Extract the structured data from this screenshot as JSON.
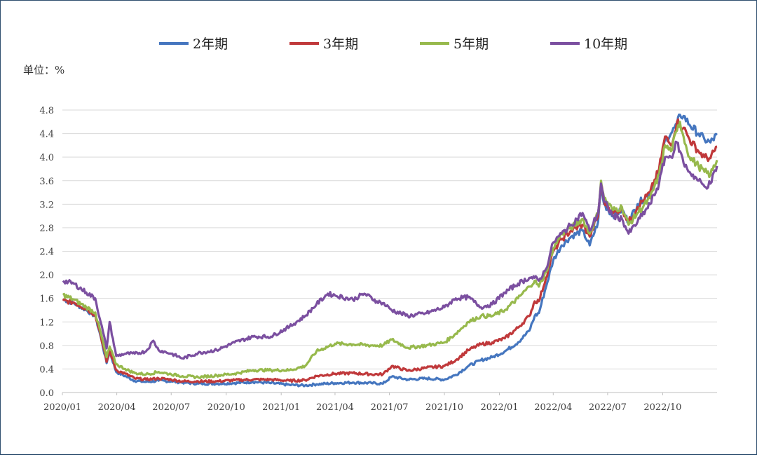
{
  "chart_data": {
    "type": "line",
    "unit_label": "单位：%",
    "legend_position": "top",
    "grid": "horizontal",
    "ylim": [
      0,
      4.8
    ],
    "y_ticks": [
      "0.0",
      "0.4",
      "0.8",
      "1.2",
      "1.6",
      "2.0",
      "2.4",
      "2.8",
      "3.2",
      "3.6",
      "4.0",
      "4.4",
      "4.8"
    ],
    "x_ticks": [
      "2020/01",
      "2020/04",
      "2020/07",
      "2020/10",
      "2021/01",
      "2021/04",
      "2021/07",
      "2021/10",
      "2022/01",
      "2022/04",
      "2022/07",
      "2022/10"
    ],
    "x_range": [
      "2020-01-01",
      "2022-12-31"
    ],
    "series": [
      {
        "name": "2年期",
        "color": "#4576bf",
        "points": [
          [
            "2020-01-02",
            1.58
          ],
          [
            "2020-01-20",
            1.52
          ],
          [
            "2020-02-10",
            1.4
          ],
          [
            "2020-02-25",
            1.3
          ],
          [
            "2020-03-05",
            0.95
          ],
          [
            "2020-03-15",
            0.5
          ],
          [
            "2020-03-20",
            0.7
          ],
          [
            "2020-03-31",
            0.35
          ],
          [
            "2020-04-15",
            0.28
          ],
          [
            "2020-05-01",
            0.2
          ],
          [
            "2020-05-20",
            0.18
          ],
          [
            "2020-06-10",
            0.2
          ],
          [
            "2020-07-01",
            0.19
          ],
          [
            "2020-07-20",
            0.17
          ],
          [
            "2020-08-15",
            0.15
          ],
          [
            "2020-09-15",
            0.15
          ],
          [
            "2020-10-15",
            0.16
          ],
          [
            "2020-11-15",
            0.18
          ],
          [
            "2020-12-15",
            0.16
          ],
          [
            "2021-01-15",
            0.13
          ],
          [
            "2021-02-10",
            0.12
          ],
          [
            "2021-03-01",
            0.14
          ],
          [
            "2021-04-01",
            0.16
          ],
          [
            "2021-05-01",
            0.17
          ],
          [
            "2021-06-01",
            0.16
          ],
          [
            "2021-06-20",
            0.15
          ],
          [
            "2021-07-05",
            0.27
          ],
          [
            "2021-08-01",
            0.22
          ],
          [
            "2021-09-01",
            0.24
          ],
          [
            "2021-10-01",
            0.22
          ],
          [
            "2021-10-20",
            0.3
          ],
          [
            "2021-11-10",
            0.45
          ],
          [
            "2021-12-01",
            0.55
          ],
          [
            "2021-12-20",
            0.6
          ],
          [
            "2022-01-10",
            0.7
          ],
          [
            "2022-02-01",
            0.85
          ],
          [
            "2022-02-20",
            1.05
          ],
          [
            "2022-03-01",
            1.3
          ],
          [
            "2022-03-08",
            1.35
          ],
          [
            "2022-03-20",
            1.8
          ],
          [
            "2022-04-01",
            2.25
          ],
          [
            "2022-04-15",
            2.5
          ],
          [
            "2022-05-01",
            2.65
          ],
          [
            "2022-05-20",
            2.75
          ],
          [
            "2022-06-01",
            2.5
          ],
          [
            "2022-06-15",
            2.9
          ],
          [
            "2022-06-20",
            3.5
          ],
          [
            "2022-06-25",
            3.2
          ],
          [
            "2022-07-10",
            3.0
          ],
          [
            "2022-07-25",
            3.1
          ],
          [
            "2022-08-05",
            2.9
          ],
          [
            "2022-08-20",
            3.2
          ],
          [
            "2022-09-10",
            3.4
          ],
          [
            "2022-09-25",
            3.75
          ],
          [
            "2022-10-05",
            4.3
          ],
          [
            "2022-10-15",
            4.4
          ],
          [
            "2022-10-25",
            4.55
          ],
          [
            "2022-10-30",
            4.72
          ],
          [
            "2022-11-05",
            4.7
          ],
          [
            "2022-11-15",
            4.55
          ],
          [
            "2022-11-30",
            4.4
          ],
          [
            "2022-12-10",
            4.3
          ],
          [
            "2022-12-20",
            4.25
          ],
          [
            "2022-12-31",
            4.38
          ]
        ]
      },
      {
        "name": "3年期",
        "color": "#c0393b",
        "points": [
          [
            "2020-01-02",
            1.56
          ],
          [
            "2020-01-20",
            1.53
          ],
          [
            "2020-02-10",
            1.42
          ],
          [
            "2020-02-25",
            1.32
          ],
          [
            "2020-03-05",
            0.98
          ],
          [
            "2020-03-15",
            0.52
          ],
          [
            "2020-03-20",
            0.72
          ],
          [
            "2020-03-31",
            0.38
          ],
          [
            "2020-04-15",
            0.32
          ],
          [
            "2020-05-01",
            0.24
          ],
          [
            "2020-05-20",
            0.22
          ],
          [
            "2020-06-10",
            0.24
          ],
          [
            "2020-07-01",
            0.22
          ],
          [
            "2020-07-20",
            0.19
          ],
          [
            "2020-08-15",
            0.19
          ],
          [
            "2020-09-15",
            0.19
          ],
          [
            "2020-10-15",
            0.21
          ],
          [
            "2020-11-15",
            0.22
          ],
          [
            "2020-12-15",
            0.22
          ],
          [
            "2021-01-15",
            0.2
          ],
          [
            "2021-02-10",
            0.21
          ],
          [
            "2021-03-01",
            0.28
          ],
          [
            "2021-04-01",
            0.32
          ],
          [
            "2021-05-01",
            0.33
          ],
          [
            "2021-06-01",
            0.31
          ],
          [
            "2021-06-20",
            0.31
          ],
          [
            "2021-07-05",
            0.45
          ],
          [
            "2021-08-01",
            0.37
          ],
          [
            "2021-09-01",
            0.42
          ],
          [
            "2021-10-01",
            0.45
          ],
          [
            "2021-10-20",
            0.55
          ],
          [
            "2021-11-10",
            0.72
          ],
          [
            "2021-12-01",
            0.82
          ],
          [
            "2021-12-20",
            0.85
          ],
          [
            "2022-01-10",
            0.92
          ],
          [
            "2022-02-01",
            1.1
          ],
          [
            "2022-02-20",
            1.3
          ],
          [
            "2022-03-01",
            1.55
          ],
          [
            "2022-03-08",
            1.55
          ],
          [
            "2022-03-20",
            1.95
          ],
          [
            "2022-04-01",
            2.4
          ],
          [
            "2022-04-15",
            2.6
          ],
          [
            "2022-05-01",
            2.75
          ],
          [
            "2022-05-20",
            2.85
          ],
          [
            "2022-06-01",
            2.65
          ],
          [
            "2022-06-15",
            3.0
          ],
          [
            "2022-06-20",
            3.55
          ],
          [
            "2022-06-25",
            3.25
          ],
          [
            "2022-07-10",
            3.05
          ],
          [
            "2022-07-25",
            3.12
          ],
          [
            "2022-08-05",
            2.9
          ],
          [
            "2022-08-20",
            3.15
          ],
          [
            "2022-09-10",
            3.4
          ],
          [
            "2022-09-25",
            3.8
          ],
          [
            "2022-10-05",
            4.35
          ],
          [
            "2022-10-15",
            4.2
          ],
          [
            "2022-10-25",
            4.6
          ],
          [
            "2022-10-30",
            4.55
          ],
          [
            "2022-11-05",
            4.5
          ],
          [
            "2022-11-15",
            4.3
          ],
          [
            "2022-11-30",
            4.1
          ],
          [
            "2022-12-10",
            4.0
          ],
          [
            "2022-12-20",
            3.98
          ],
          [
            "2022-12-31",
            4.18
          ]
        ]
      },
      {
        "name": "5年期",
        "color": "#97b94c",
        "points": [
          [
            "2020-01-02",
            1.66
          ],
          [
            "2020-01-20",
            1.58
          ],
          [
            "2020-02-10",
            1.45
          ],
          [
            "2020-02-25",
            1.36
          ],
          [
            "2020-03-05",
            1.02
          ],
          [
            "2020-03-15",
            0.6
          ],
          [
            "2020-03-20",
            0.78
          ],
          [
            "2020-03-31",
            0.48
          ],
          [
            "2020-04-15",
            0.4
          ],
          [
            "2020-05-01",
            0.33
          ],
          [
            "2020-05-20",
            0.31
          ],
          [
            "2020-06-10",
            0.35
          ],
          [
            "2020-07-01",
            0.31
          ],
          [
            "2020-07-20",
            0.28
          ],
          [
            "2020-08-15",
            0.26
          ],
          [
            "2020-09-15",
            0.29
          ],
          [
            "2020-10-15",
            0.32
          ],
          [
            "2020-11-15",
            0.38
          ],
          [
            "2020-12-15",
            0.38
          ],
          [
            "2021-01-15",
            0.38
          ],
          [
            "2021-02-10",
            0.45
          ],
          [
            "2021-03-01",
            0.7
          ],
          [
            "2021-04-01",
            0.83
          ],
          [
            "2021-05-01",
            0.82
          ],
          [
            "2021-06-01",
            0.8
          ],
          [
            "2021-06-20",
            0.8
          ],
          [
            "2021-07-05",
            0.9
          ],
          [
            "2021-08-01",
            0.76
          ],
          [
            "2021-09-01",
            0.8
          ],
          [
            "2021-10-01",
            0.85
          ],
          [
            "2021-10-20",
            1.0
          ],
          [
            "2021-11-10",
            1.2
          ],
          [
            "2021-12-01",
            1.3
          ],
          [
            "2021-12-20",
            1.3
          ],
          [
            "2022-01-10",
            1.4
          ],
          [
            "2022-02-01",
            1.6
          ],
          [
            "2022-02-20",
            1.8
          ],
          [
            "2022-03-01",
            1.9
          ],
          [
            "2022-03-08",
            1.8
          ],
          [
            "2022-03-20",
            2.05
          ],
          [
            "2022-04-01",
            2.45
          ],
          [
            "2022-04-15",
            2.7
          ],
          [
            "2022-05-01",
            2.8
          ],
          [
            "2022-05-20",
            2.95
          ],
          [
            "2022-06-01",
            2.7
          ],
          [
            "2022-06-15",
            3.05
          ],
          [
            "2022-06-20",
            3.6
          ],
          [
            "2022-06-25",
            3.3
          ],
          [
            "2022-07-10",
            3.1
          ],
          [
            "2022-07-25",
            3.15
          ],
          [
            "2022-08-05",
            2.85
          ],
          [
            "2022-08-20",
            3.05
          ],
          [
            "2022-09-10",
            3.3
          ],
          [
            "2022-09-25",
            3.7
          ],
          [
            "2022-10-05",
            4.2
          ],
          [
            "2022-10-15",
            4.1
          ],
          [
            "2022-10-25",
            4.45
          ],
          [
            "2022-10-30",
            4.6
          ],
          [
            "2022-11-05",
            4.35
          ],
          [
            "2022-11-15",
            4.0
          ],
          [
            "2022-11-30",
            3.85
          ],
          [
            "2022-12-10",
            3.75
          ],
          [
            "2022-12-20",
            3.7
          ],
          [
            "2022-12-31",
            3.95
          ]
        ]
      },
      {
        "name": "10年期",
        "color": "#7b4fa0",
        "points": [
          [
            "2020-01-02",
            1.9
          ],
          [
            "2020-01-20",
            1.85
          ],
          [
            "2020-02-10",
            1.7
          ],
          [
            "2020-02-25",
            1.6
          ],
          [
            "2020-03-05",
            1.2
          ],
          [
            "2020-03-15",
            0.75
          ],
          [
            "2020-03-20",
            1.2
          ],
          [
            "2020-03-31",
            0.62
          ],
          [
            "2020-04-15",
            0.66
          ],
          [
            "2020-05-01",
            0.66
          ],
          [
            "2020-05-20",
            0.7
          ],
          [
            "2020-06-01",
            0.88
          ],
          [
            "2020-06-10",
            0.72
          ],
          [
            "2020-07-01",
            0.66
          ],
          [
            "2020-07-20",
            0.58
          ],
          [
            "2020-08-15",
            0.67
          ],
          [
            "2020-09-15",
            0.72
          ],
          [
            "2020-10-15",
            0.85
          ],
          [
            "2020-11-15",
            0.95
          ],
          [
            "2020-12-15",
            0.95
          ],
          [
            "2021-01-15",
            1.12
          ],
          [
            "2021-02-10",
            1.3
          ],
          [
            "2021-03-01",
            1.5
          ],
          [
            "2021-03-20",
            1.68
          ],
          [
            "2021-04-01",
            1.65
          ],
          [
            "2021-05-01",
            1.58
          ],
          [
            "2021-05-20",
            1.68
          ],
          [
            "2021-06-10",
            1.55
          ],
          [
            "2021-06-20",
            1.52
          ],
          [
            "2021-07-05",
            1.4
          ],
          [
            "2021-08-01",
            1.3
          ],
          [
            "2021-09-01",
            1.35
          ],
          [
            "2021-10-01",
            1.45
          ],
          [
            "2021-10-20",
            1.6
          ],
          [
            "2021-11-10",
            1.62
          ],
          [
            "2021-12-01",
            1.45
          ],
          [
            "2021-12-20",
            1.5
          ],
          [
            "2022-01-10",
            1.7
          ],
          [
            "2022-02-01",
            1.85
          ],
          [
            "2022-02-20",
            1.95
          ],
          [
            "2022-03-01",
            1.95
          ],
          [
            "2022-03-08",
            1.9
          ],
          [
            "2022-03-20",
            2.1
          ],
          [
            "2022-04-01",
            2.55
          ],
          [
            "2022-04-15",
            2.7
          ],
          [
            "2022-05-01",
            2.85
          ],
          [
            "2022-05-20",
            3.05
          ],
          [
            "2022-06-01",
            2.75
          ],
          [
            "2022-06-15",
            3.05
          ],
          [
            "2022-06-20",
            3.55
          ],
          [
            "2022-06-25",
            3.25
          ],
          [
            "2022-07-10",
            3.0
          ],
          [
            "2022-07-25",
            2.95
          ],
          [
            "2022-08-05",
            2.7
          ],
          [
            "2022-08-20",
            2.9
          ],
          [
            "2022-09-10",
            3.2
          ],
          [
            "2022-09-25",
            3.55
          ],
          [
            "2022-10-05",
            4.0
          ],
          [
            "2022-10-15",
            4.0
          ],
          [
            "2022-10-25",
            4.25
          ],
          [
            "2022-10-30",
            4.1
          ],
          [
            "2022-11-05",
            3.9
          ],
          [
            "2022-11-15",
            3.75
          ],
          [
            "2022-11-30",
            3.6
          ],
          [
            "2022-12-10",
            3.5
          ],
          [
            "2022-12-20",
            3.55
          ],
          [
            "2022-12-31",
            3.85
          ]
        ]
      }
    ]
  }
}
